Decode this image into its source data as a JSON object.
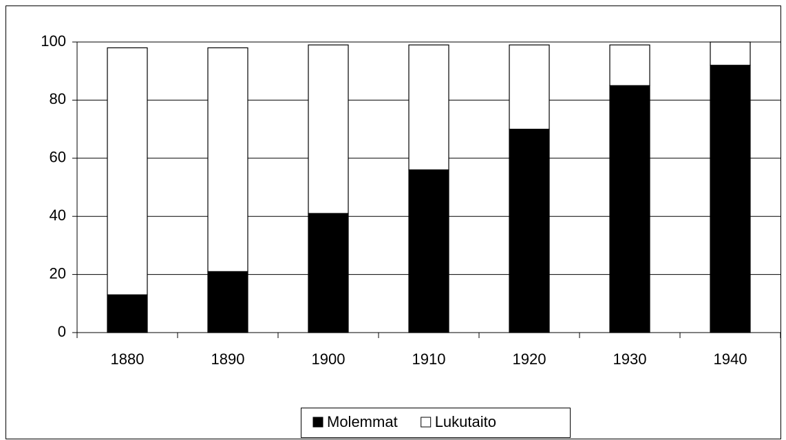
{
  "chart_data": {
    "type": "stacked_bar",
    "categories": [
      "1880",
      "1890",
      "1900",
      "1910",
      "1920",
      "1930",
      "1940"
    ],
    "series": [
      {
        "name": "Molemmat",
        "color": "#000000",
        "values": [
          13,
          21,
          41,
          56,
          70,
          85,
          92
        ]
      },
      {
        "name": "Lukutaito",
        "color": "#ffffff",
        "values": [
          85,
          77,
          58,
          43,
          29,
          14,
          8
        ]
      }
    ],
    "ylim": [
      0,
      100
    ],
    "yticks": [
      0,
      20,
      40,
      60,
      80,
      100
    ],
    "grid": true,
    "legend": "bottom"
  }
}
